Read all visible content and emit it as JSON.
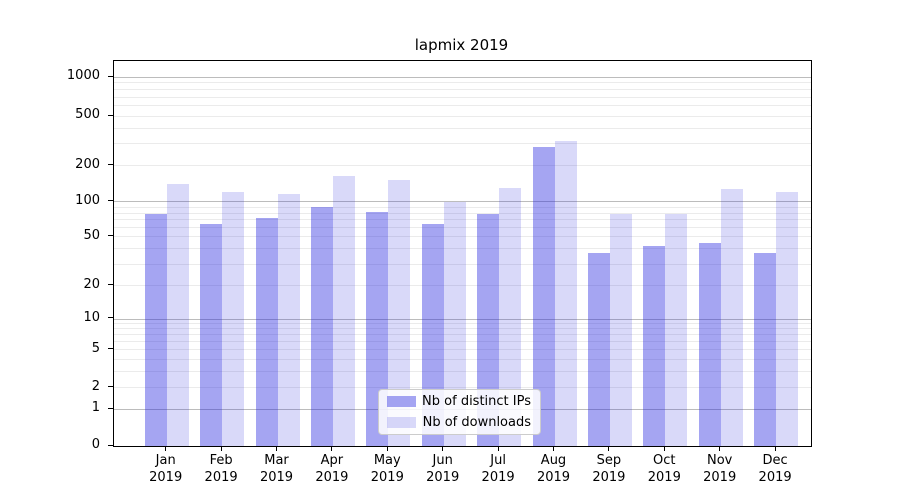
{
  "chart_data": {
    "type": "bar",
    "title": "lapmix 2019",
    "categories": [
      {
        "line1": "Jan",
        "line2": "2019"
      },
      {
        "line1": "Feb",
        "line2": "2019"
      },
      {
        "line1": "Mar",
        "line2": "2019"
      },
      {
        "line1": "Apr",
        "line2": "2019"
      },
      {
        "line1": "May",
        "line2": "2019"
      },
      {
        "line1": "Jun",
        "line2": "2019"
      },
      {
        "line1": "Jul",
        "line2": "2019"
      },
      {
        "line1": "Aug",
        "line2": "2019"
      },
      {
        "line1": "Sep",
        "line2": "2019"
      },
      {
        "line1": "Oct",
        "line2": "2019"
      },
      {
        "line1": "Nov",
        "line2": "2019"
      },
      {
        "line1": "Dec",
        "line2": "2019"
      }
    ],
    "series": [
      {
        "name": "Nb of distinct IPs",
        "color": "rgba(30,30,222,0.40)",
        "values": [
          78,
          64,
          72,
          90,
          81,
          65,
          79,
          282,
          37,
          42,
          45,
          37
        ]
      },
      {
        "name": "Nb of downloads",
        "color": "rgba(30,30,222,0.17)",
        "values": [
          140,
          120,
          117,
          165,
          152,
          100,
          130,
          318,
          78,
          78,
          128,
          120
        ]
      }
    ],
    "yticks": [
      0,
      1,
      2,
      5,
      10,
      20,
      50,
      100,
      200,
      500,
      1000
    ],
    "ylim": [
      0,
      1300
    ],
    "yscale": "symlog",
    "grid": true,
    "legend_position": "lower center",
    "colors": {
      "major_grid": "#bcbcbc",
      "minor_grid": "#ebebeb",
      "axis": "#000000"
    }
  }
}
